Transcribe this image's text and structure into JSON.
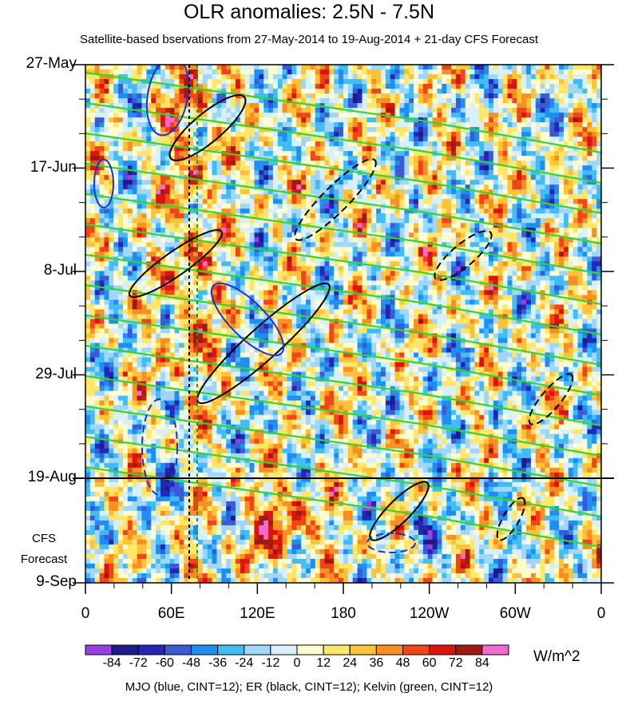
{
  "chart_data": {
    "type": "heatmap",
    "title": "OLR anomalies: 2.5N - 7.5N",
    "subtitle": "Satellite-based bservations from 27-May-2014 to 19-Aug-2014 + 21-day CFS Forecast",
    "y_ticks": [
      "27-May",
      "17-Jun",
      "8-Jul",
      "29-Jul",
      "19-Aug",
      "9-Sep"
    ],
    "x_ticks": [
      "0",
      "60E",
      "120E",
      "180",
      "120W",
      "60W",
      "0"
    ],
    "forecast_start": "19-Aug",
    "forecast_label": [
      "CFS",
      "Forecast"
    ],
    "reference_longitude": "75E",
    "colorbar": {
      "unit": "W/m^2",
      "labels": [
        "-84",
        "-72",
        "-60",
        "-48",
        "-36",
        "-24",
        "-12",
        "0",
        "12",
        "24",
        "36",
        "48",
        "60",
        "72",
        "84"
      ],
      "colors": [
        "#9a3fe3",
        "#1c1c8c",
        "#2626b4",
        "#3a5bd6",
        "#1e8ff0",
        "#41bdf3",
        "#a0d6f7",
        "#d8f0f8",
        "#fffbd0",
        "#fde76a",
        "#fbc23a",
        "#f79022",
        "#f0441a",
        "#d91510",
        "#a01a14",
        "#f06cd0"
      ]
    },
    "footer": "MJO (blue, CINT=12); ER (black, CINT=12); Kelvin (green, CINT=12)"
  }
}
